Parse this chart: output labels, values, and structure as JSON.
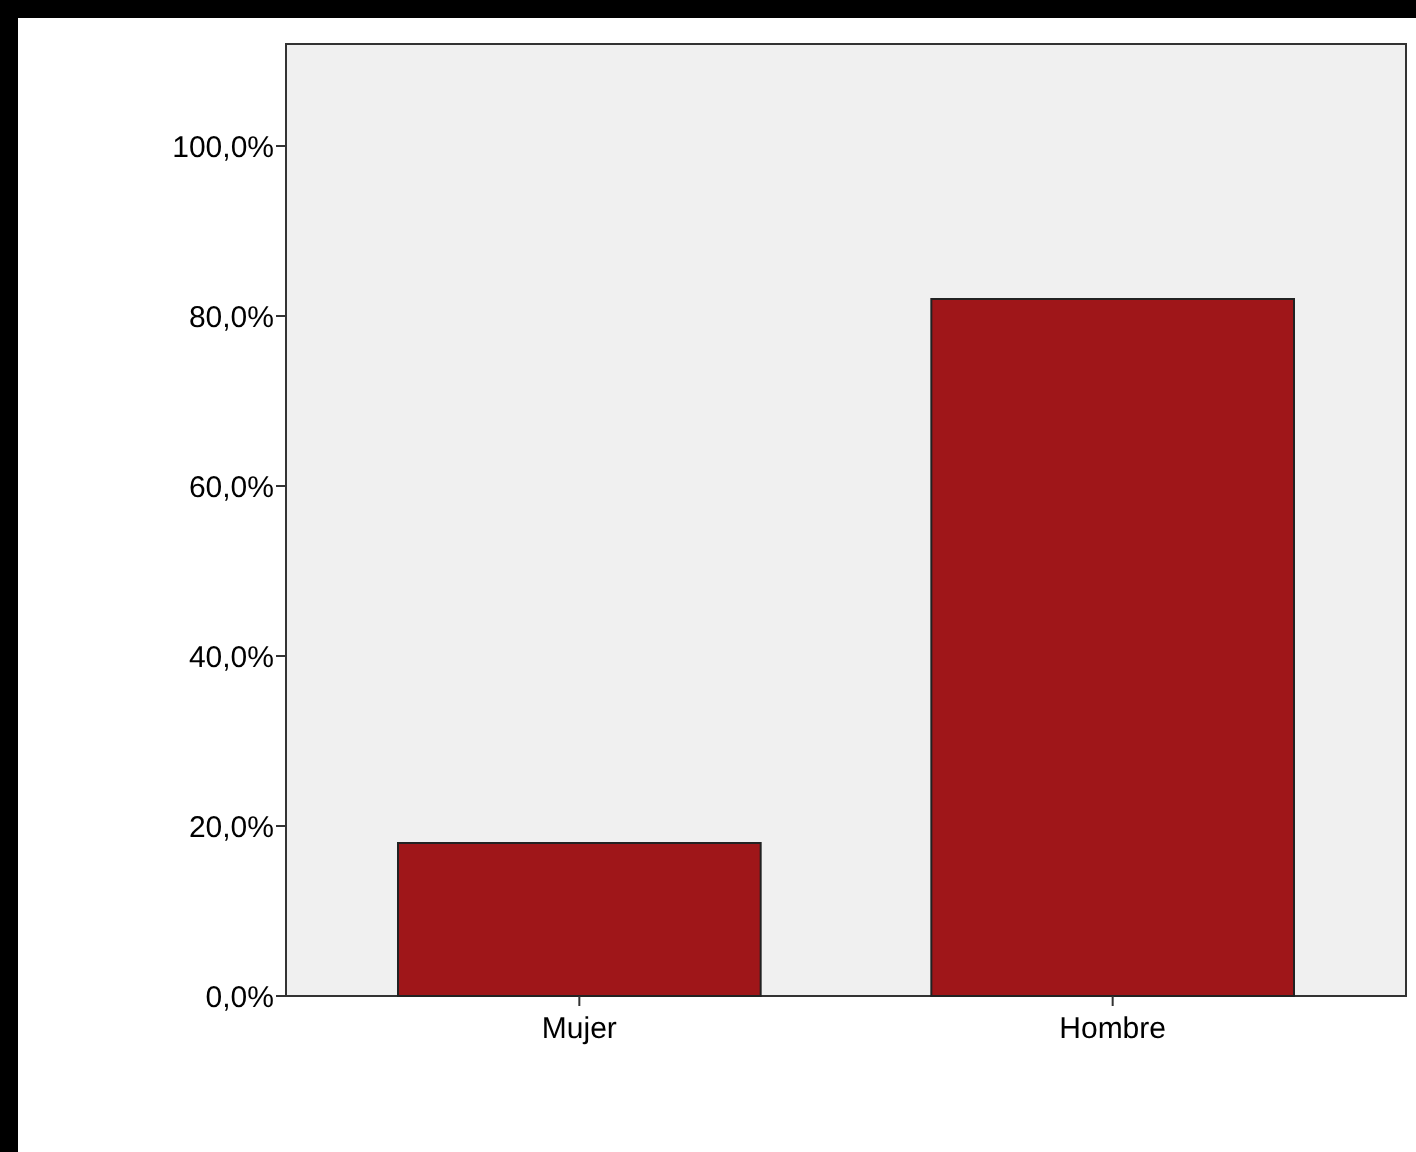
{
  "chart_data": {
    "type": "bar",
    "categories": [
      "Mujer",
      "Hombre"
    ],
    "values": [
      18,
      82
    ],
    "color": "#9f1619",
    "ylim": [
      0,
      112
    ],
    "yticks": [
      {
        "value": 0,
        "label": "0,0%"
      },
      {
        "value": 20,
        "label": "20,0%"
      },
      {
        "value": 40,
        "label": "40,0%"
      },
      {
        "value": 60,
        "label": "60,0%"
      },
      {
        "value": 80,
        "label": "80,0%"
      },
      {
        "value": 100,
        "label": "100,0%"
      }
    ],
    "grid": false
  }
}
